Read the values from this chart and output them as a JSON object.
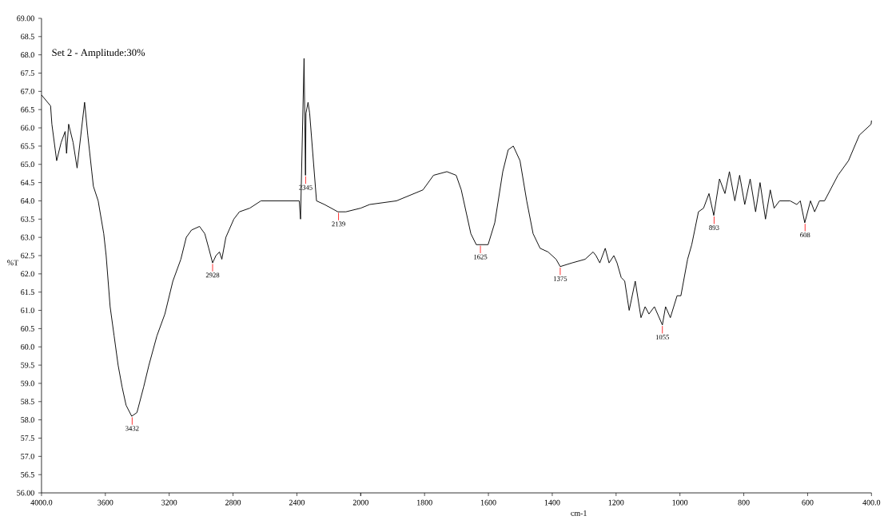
{
  "chart_data": [
    {
      "type": "line",
      "title": "Set 2 - Amplitude:30%",
      "ylabel": "%T",
      "color": "#000000",
      "x": [
        4000,
        3943,
        3935,
        3905,
        3877,
        3852,
        3843,
        3830,
        3802,
        3777,
        3730,
        3710,
        3685,
        3675,
        3645,
        3610,
        3595,
        3570,
        3545,
        3520,
        3495,
        3470,
        3435,
        3402,
        3360,
        3327,
        3277,
        3227,
        3177,
        3127,
        3093,
        3060,
        3010,
        2977,
        2952,
        2928,
        2907,
        2885,
        2870,
        2845,
        2795,
        2760,
        2695,
        2625,
        2525,
        2410,
        2385,
        2377,
        2355,
        2346,
        2343,
        2330,
        2320,
        2277,
        2227,
        2143,
        2093,
        2000
      ],
      "values": [
        66.9,
        66.6,
        66.1,
        65.1,
        65.6,
        65.9,
        65.3,
        66.1,
        65.6,
        64.9,
        66.7,
        65.8,
        64.8,
        64.4,
        64.0,
        63.1,
        62.5,
        61.1,
        60.3,
        59.5,
        58.9,
        58.4,
        58.1,
        58.2,
        58.9,
        59.5,
        60.3,
        60.9,
        61.8,
        62.4,
        63.0,
        63.2,
        63.3,
        63.1,
        62.7,
        62.3,
        62.5,
        62.6,
        62.4,
        63.0,
        63.5,
        63.7,
        63.8,
        64.0,
        64.0,
        64.0,
        64.0,
        63.5,
        67.9,
        64.7,
        66.4,
        66.7,
        66.4,
        64.0,
        63.9,
        63.7,
        63.7,
        63.8
      ],
      "xlim": [
        4000,
        2000
      ],
      "xticks": [
        {
          "value": 4000,
          "label": "4000.0"
        },
        3600,
        3200,
        2800,
        2400,
        2000
      ],
      "ylim": [
        56,
        69
      ],
      "yticks": [
        {
          "value": 56,
          "label": "56.00"
        },
        {
          "value": 56.5,
          "label": "56.5"
        },
        {
          "value": 57,
          "label": "57.0"
        },
        {
          "value": 57.5,
          "label": "57.5"
        },
        {
          "value": 58,
          "label": "58.0"
        },
        {
          "value": 58.5,
          "label": "58.5"
        },
        {
          "value": 59,
          "label": "59.0"
        },
        {
          "value": 59.5,
          "label": "59.5"
        },
        {
          "value": 60,
          "label": "60.0"
        },
        {
          "value": 60.5,
          "label": "60.5"
        },
        {
          "value": 61,
          "label": "61.0"
        },
        {
          "value": 61.5,
          "label": "61.5"
        },
        {
          "value": 62,
          "label": "62.0"
        },
        {
          "value": 62.5,
          "label": "62.5"
        },
        {
          "value": 63,
          "label": "63.0"
        },
        {
          "value": 63.5,
          "label": "63.5"
        },
        {
          "value": 64,
          "label": "64.0"
        },
        {
          "value": 64.5,
          "label": "64.5"
        },
        {
          "value": 65,
          "label": "65.0"
        },
        {
          "value": 65.5,
          "label": "65.5"
        },
        {
          "value": 66,
          "label": "66.0"
        },
        {
          "value": 66.5,
          "label": "66.5"
        },
        {
          "value": 67,
          "label": "67.0"
        },
        {
          "value": 67.5,
          "label": "67.5"
        },
        {
          "value": 68,
          "label": "68.0"
        },
        {
          "value": 68.5,
          "label": "68.5"
        },
        {
          "value": 69,
          "label": "69.00"
        }
      ],
      "annotations": [
        {
          "text": "3432",
          "x": 3432,
          "y": 58.1
        },
        {
          "text": "2928",
          "x": 2928,
          "y": 62.3
        },
        {
          "text": "2345",
          "x": 2345,
          "y": 64.7
        },
        {
          "text": "2139",
          "x": 2139,
          "y": 63.7
        }
      ]
    },
    {
      "type": "line",
      "xlabel": "cm-1",
      "color": "#000000",
      "tick_labels": "x",
      "x": [
        2000,
        1972,
        1888,
        1805,
        1772,
        1730,
        1701,
        1685,
        1655,
        1638,
        1622,
        1601,
        1580,
        1555,
        1538,
        1522,
        1501,
        1480,
        1460,
        1438,
        1413,
        1388,
        1375,
        1338,
        1297,
        1272,
        1263,
        1251,
        1234,
        1222,
        1207,
        1197,
        1184,
        1173,
        1159,
        1140,
        1122,
        1109,
        1097,
        1080,
        1055,
        1045,
        1030,
        1009,
        997,
        976,
        963,
        942,
        926,
        909,
        894,
        876,
        859,
        845,
        828,
        813,
        797,
        780,
        763,
        749,
        732,
        717,
        705,
        688,
        655,
        634,
        623,
        609,
        591,
        578,
        563,
        547,
        505,
        472,
        438,
        401,
        400
      ],
      "values": [
        63.8,
        63.9,
        64.0,
        64.3,
        64.7,
        64.8,
        64.7,
        64.3,
        63.1,
        62.8,
        62.8,
        62.8,
        63.4,
        64.8,
        65.4,
        65.5,
        65.1,
        64.0,
        63.1,
        62.7,
        62.6,
        62.4,
        62.2,
        62.3,
        62.4,
        62.6,
        62.5,
        62.3,
        62.7,
        62.3,
        62.5,
        62.3,
        61.9,
        61.8,
        61.0,
        61.8,
        60.8,
        61.1,
        60.9,
        61.1,
        60.6,
        61.1,
        60.8,
        61.4,
        61.4,
        62.4,
        62.8,
        63.7,
        63.8,
        64.2,
        63.6,
        64.6,
        64.2,
        64.8,
        64.0,
        64.7,
        63.9,
        64.6,
        63.7,
        64.5,
        63.5,
        64.3,
        63.8,
        64.0,
        64.0,
        63.9,
        64.0,
        63.4,
        64.0,
        63.7,
        64.0,
        64.0,
        64.7,
        65.1,
        65.8,
        66.1,
        66.2
      ],
      "xlim": [
        2000,
        400
      ],
      "xticks": [
        {
          "value": 2000,
          "label": null
        },
        1800,
        1600,
        1400,
        1200,
        1000,
        800,
        600,
        {
          "value": 400,
          "label": "400.0"
        }
      ],
      "ylim": [
        56,
        69
      ],
      "annotations": [
        {
          "text": "1625",
          "x": 1625,
          "y": 62.8
        },
        {
          "text": "1375",
          "x": 1375,
          "y": 62.2
        },
        {
          "text": "1055",
          "x": 1055,
          "y": 60.6
        },
        {
          "text": "893",
          "x": 893,
          "y": 63.6
        },
        {
          "text": "608",
          "x": 608,
          "y": 63.4
        }
      ]
    }
  ]
}
